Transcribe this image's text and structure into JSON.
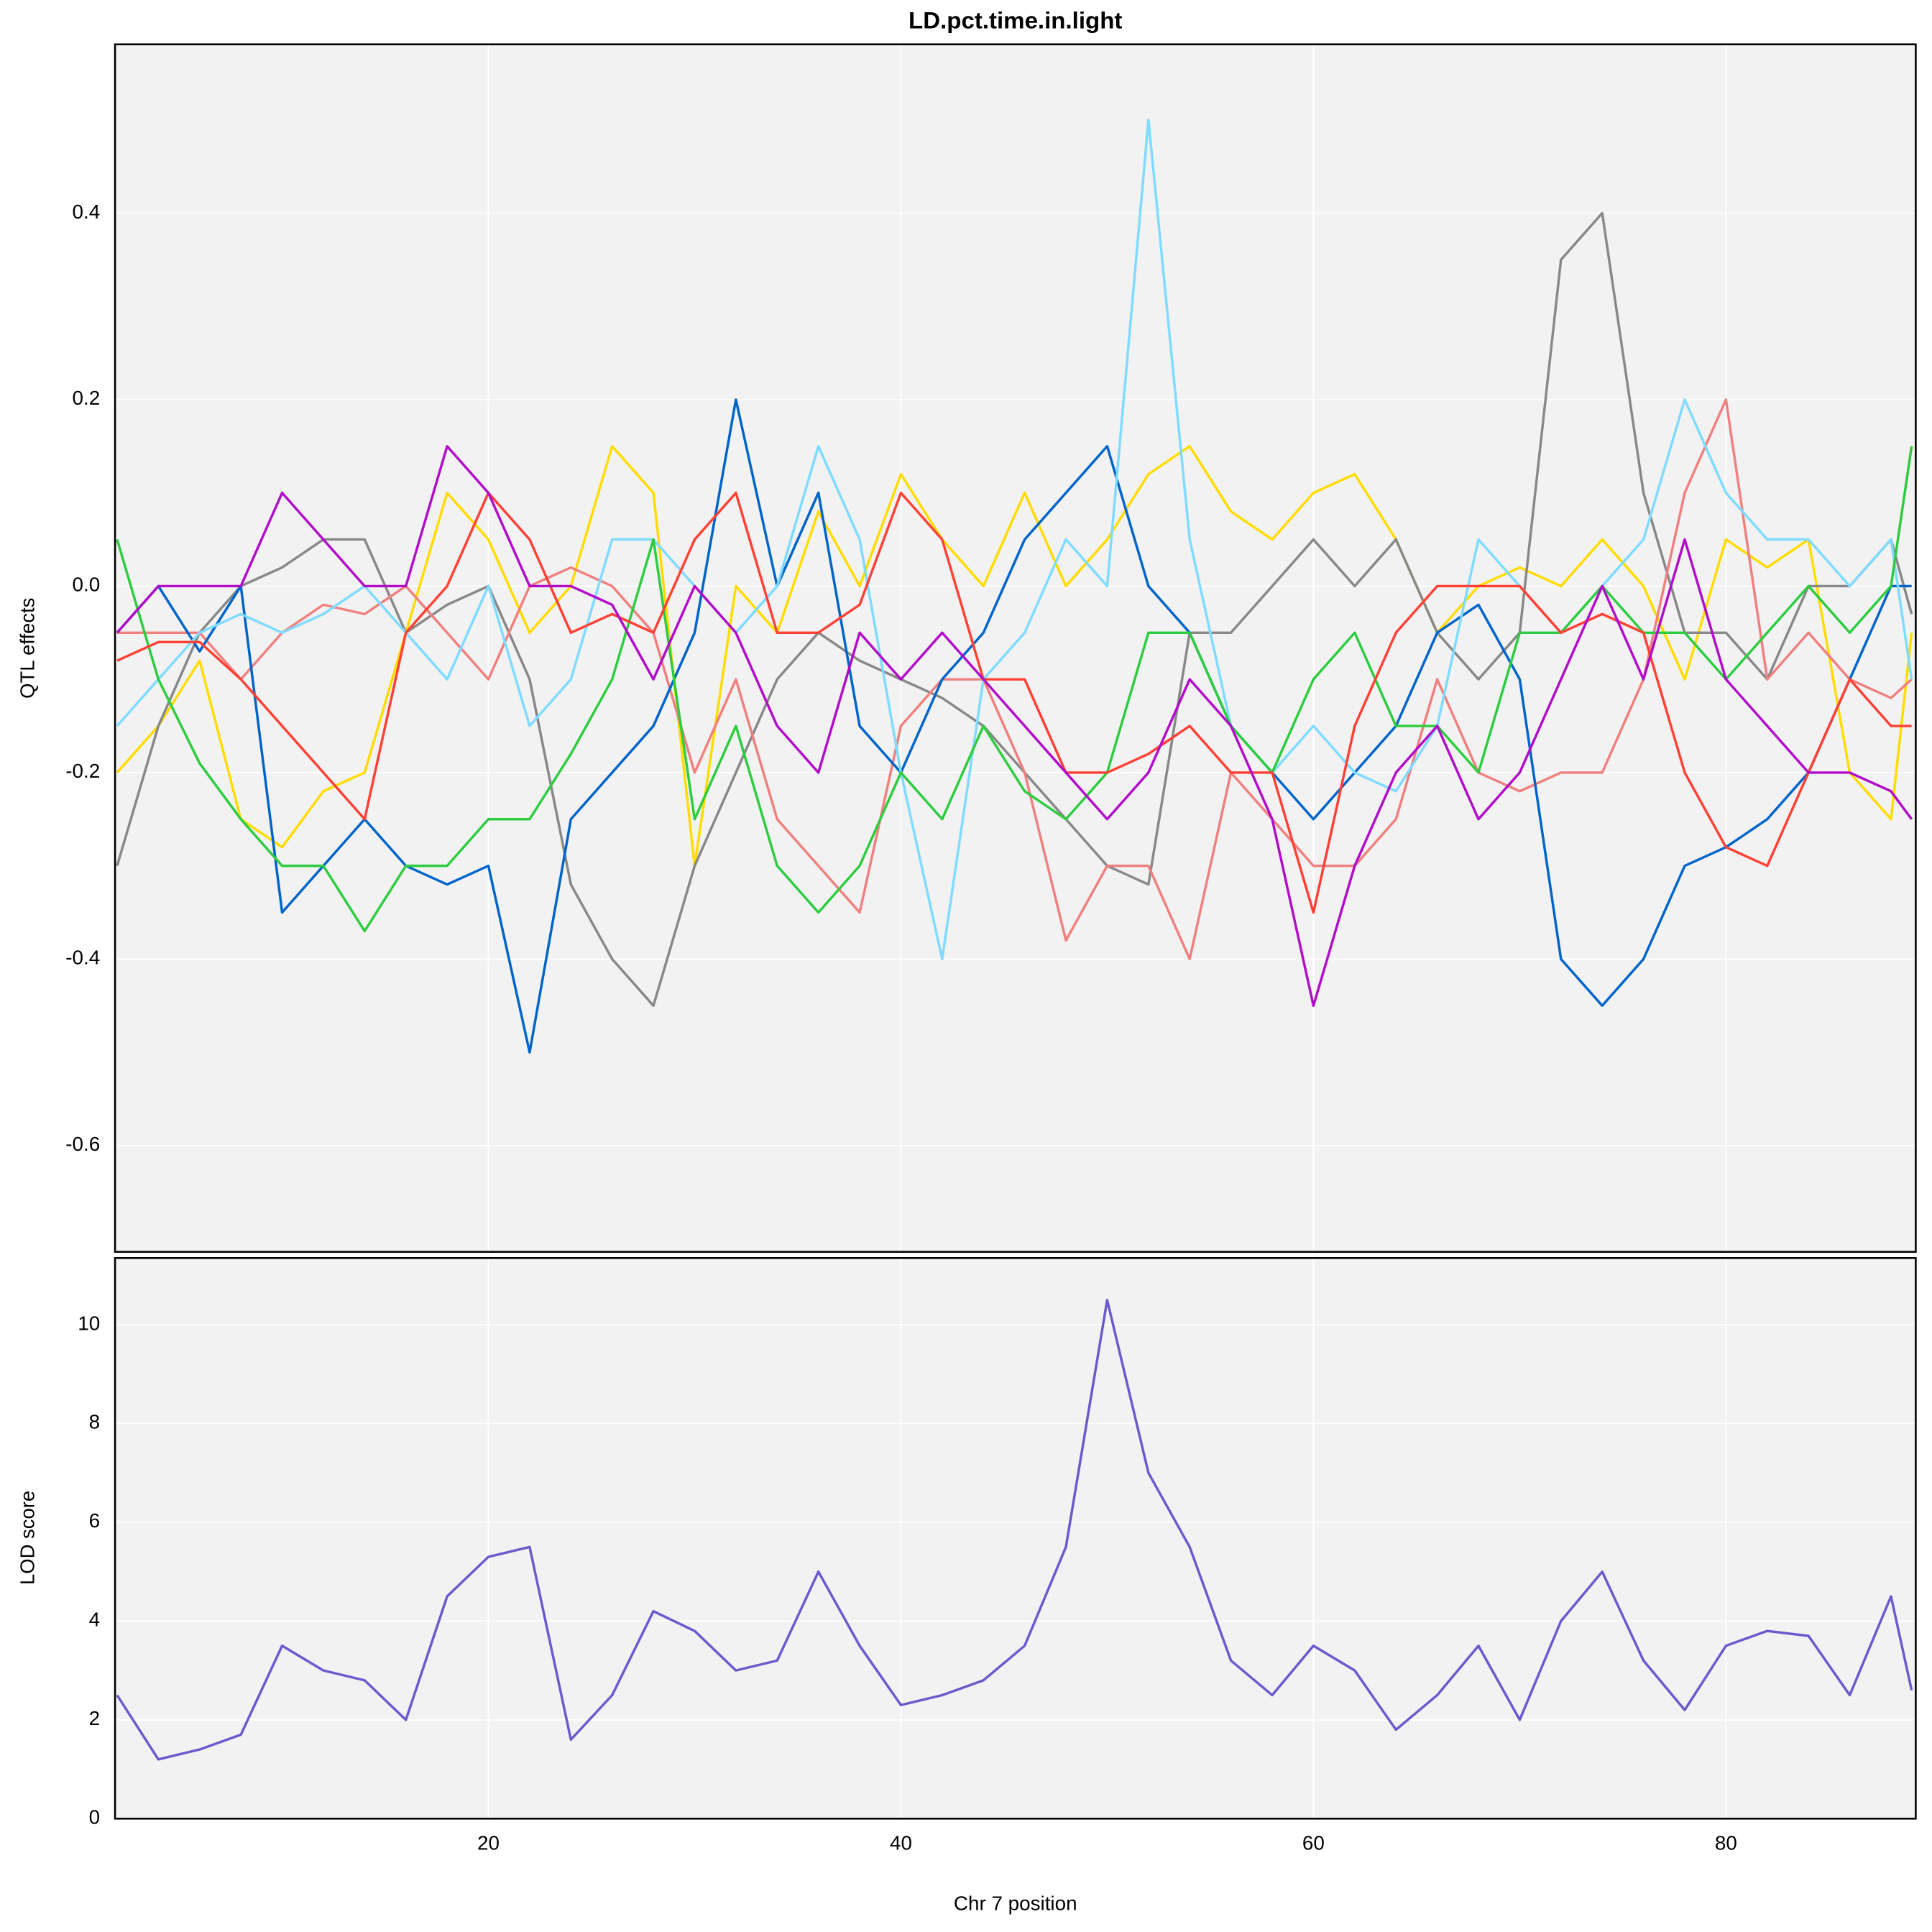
{
  "chart_data": [
    {
      "type": "line",
      "title": "LD.pct.time.in.light",
      "ylabel": "QTL effects",
      "x": [
        2,
        4,
        6,
        8,
        10,
        12,
        14,
        16,
        18,
        20,
        22,
        24,
        26,
        28,
        30,
        32,
        34,
        36,
        38,
        40,
        42,
        44,
        46,
        48,
        50,
        52,
        54,
        56,
        58,
        60,
        62,
        64,
        66,
        68,
        70,
        72,
        74,
        76,
        78,
        80,
        82,
        84,
        86,
        88,
        89
      ],
      "series": [
        {
          "color": "#FFDC00",
          "values": [
            -0.2,
            -0.15,
            -0.08,
            -0.25,
            -0.28,
            -0.22,
            -0.2,
            -0.05,
            0.1,
            0.05,
            -0.05,
            0.0,
            0.15,
            0.1,
            -0.3,
            0.0,
            -0.05,
            0.08,
            0.0,
            0.12,
            0.05,
            0.0,
            0.1,
            0.0,
            0.05,
            0.12,
            0.15,
            0.08,
            0.05,
            0.1,
            0.12,
            0.05,
            -0.05,
            0.0,
            0.02,
            0.0,
            0.05,
            0.0,
            -0.1,
            0.05,
            0.02,
            0.05,
            -0.2,
            -0.25,
            -0.05
          ]
        },
        {
          "color": "#888888",
          "values": [
            -0.3,
            -0.15,
            -0.05,
            0.0,
            0.02,
            0.05,
            0.05,
            -0.05,
            -0.02,
            0.0,
            -0.1,
            -0.32,
            -0.4,
            -0.45,
            -0.3,
            -0.2,
            -0.1,
            -0.05,
            -0.08,
            -0.1,
            -0.12,
            -0.15,
            -0.2,
            -0.25,
            -0.3,
            -0.32,
            -0.05,
            -0.05,
            0.0,
            0.05,
            0.0,
            0.05,
            -0.05,
            -0.1,
            -0.05,
            0.35,
            0.4,
            0.1,
            -0.05,
            -0.05,
            -0.1,
            0.0,
            0.0,
            0.05,
            -0.03
          ]
        },
        {
          "color": "#F08080",
          "values": [
            -0.05,
            -0.05,
            -0.05,
            -0.1,
            -0.05,
            -0.02,
            -0.03,
            0.0,
            -0.05,
            -0.1,
            0.0,
            0.02,
            0.0,
            -0.05,
            -0.2,
            -0.1,
            -0.25,
            -0.3,
            -0.35,
            -0.15,
            -0.1,
            -0.1,
            -0.2,
            -0.38,
            -0.3,
            -0.3,
            -0.4,
            -0.2,
            -0.25,
            -0.3,
            -0.3,
            -0.25,
            -0.1,
            -0.2,
            -0.22,
            -0.2,
            -0.2,
            -0.1,
            0.1,
            0.2,
            -0.1,
            -0.05,
            -0.1,
            -0.12,
            -0.1
          ]
        },
        {
          "color": "#0064C9",
          "values": [
            -0.05,
            0.0,
            -0.07,
            0.0,
            -0.35,
            -0.3,
            -0.25,
            -0.3,
            -0.32,
            -0.3,
            -0.5,
            -0.25,
            -0.2,
            -0.15,
            -0.05,
            0.2,
            0.0,
            0.1,
            -0.15,
            -0.2,
            -0.1,
            -0.05,
            0.05,
            0.1,
            0.15,
            0.0,
            -0.05,
            -0.15,
            -0.2,
            -0.25,
            -0.2,
            -0.15,
            -0.05,
            -0.02,
            -0.1,
            -0.4,
            -0.45,
            -0.4,
            -0.3,
            -0.28,
            -0.25,
            -0.2,
            -0.1,
            0.0,
            0.0
          ]
        },
        {
          "color": "#7FDBFF",
          "values": [
            -0.15,
            -0.1,
            -0.05,
            -0.03,
            -0.05,
            -0.03,
            0.0,
            -0.05,
            -0.1,
            0.0,
            -0.15,
            -0.1,
            0.05,
            0.05,
            0.0,
            -0.05,
            0.0,
            0.15,
            0.05,
            -0.2,
            -0.4,
            -0.1,
            -0.05,
            0.05,
            0.0,
            0.5,
            0.05,
            -0.15,
            -0.2,
            -0.15,
            -0.2,
            -0.22,
            -0.15,
            0.05,
            0.0,
            -0.05,
            0.0,
            0.05,
            0.2,
            0.1,
            0.05,
            0.05,
            0.0,
            0.05,
            -0.1
          ]
        },
        {
          "color": "#2ECC40",
          "values": [
            0.05,
            -0.1,
            -0.19,
            -0.25,
            -0.3,
            -0.3,
            -0.37,
            -0.3,
            -0.3,
            -0.25,
            -0.25,
            -0.18,
            -0.1,
            0.05,
            -0.25,
            -0.15,
            -0.3,
            -0.35,
            -0.3,
            -0.2,
            -0.25,
            -0.15,
            -0.22,
            -0.25,
            -0.2,
            -0.05,
            -0.05,
            -0.15,
            -0.2,
            -0.1,
            -0.05,
            -0.15,
            -0.15,
            -0.2,
            -0.05,
            -0.05,
            0.0,
            -0.05,
            -0.05,
            -0.1,
            -0.05,
            0.0,
            -0.05,
            0.0,
            0.15
          ]
        },
        {
          "color": "#FF4136",
          "values": [
            -0.08,
            -0.06,
            -0.06,
            -0.1,
            -0.15,
            -0.2,
            -0.25,
            -0.05,
            0.0,
            0.1,
            0.05,
            -0.05,
            -0.03,
            -0.05,
            0.05,
            0.1,
            -0.05,
            -0.05,
            -0.02,
            0.1,
            0.05,
            -0.1,
            -0.1,
            -0.2,
            -0.2,
            -0.18,
            -0.15,
            -0.2,
            -0.2,
            -0.35,
            -0.15,
            -0.05,
            0.0,
            0.0,
            0.0,
            -0.05,
            -0.03,
            -0.05,
            -0.2,
            -0.28,
            -0.3,
            -0.2,
            -0.1,
            -0.15,
            -0.15
          ]
        },
        {
          "color": "#B10DC9",
          "values": [
            -0.05,
            0.0,
            0.0,
            0.0,
            0.1,
            0.05,
            0.0,
            0.0,
            0.15,
            0.1,
            0.0,
            0.0,
            -0.02,
            -0.1,
            0.0,
            -0.05,
            -0.15,
            -0.2,
            -0.05,
            -0.1,
            -0.05,
            -0.1,
            -0.15,
            -0.2,
            -0.25,
            -0.2,
            -0.1,
            -0.15,
            -0.25,
            -0.45,
            -0.3,
            -0.2,
            -0.15,
            -0.25,
            -0.2,
            -0.1,
            0.0,
            -0.1,
            0.05,
            -0.1,
            -0.15,
            -0.2,
            -0.2,
            -0.22,
            -0.25
          ]
        }
      ],
      "xlim": [
        1.9,
        89.2
      ],
      "xticks": [
        20,
        40,
        60,
        80
      ],
      "ylim": [
        -0.714,
        0.581
      ],
      "yticks": [
        0.4,
        0.2,
        {
          "value": 0,
          "label": "0.0"
        },
        -0.2,
        -0.4,
        -0.6
      ],
      "grid": true
    },
    {
      "type": "line",
      "xlabel": "Chr 7 position",
      "ylabel": "LOD score",
      "x": [
        2,
        4,
        6,
        8,
        10,
        12,
        14,
        16,
        18,
        20,
        22,
        24,
        26,
        28,
        30,
        32,
        34,
        36,
        38,
        40,
        42,
        44,
        46,
        48,
        50,
        52,
        54,
        56,
        58,
        60,
        62,
        64,
        66,
        68,
        70,
        72,
        74,
        76,
        78,
        80,
        82,
        84,
        86,
        88,
        89
      ],
      "series": [
        {
          "color": "#6A5ACD",
          "values": [
            2.5,
            1.2,
            1.4,
            1.7,
            3.5,
            3.0,
            2.8,
            2.0,
            4.5,
            5.3,
            5.5,
            1.6,
            2.5,
            4.2,
            3.8,
            3.0,
            3.2,
            5.0,
            3.5,
            2.3,
            2.5,
            2.8,
            3.5,
            5.5,
            10.5,
            7.0,
            5.5,
            3.2,
            2.5,
            3.5,
            3.0,
            1.8,
            2.5,
            3.5,
            2.0,
            4.0,
            5.0,
            3.2,
            2.2,
            3.5,
            3.8,
            3.7,
            2.5,
            4.5,
            2.6
          ]
        }
      ],
      "xlim": [
        1.9,
        89.2
      ],
      "xticks": [
        20,
        40,
        60,
        80
      ],
      "ylim": [
        0,
        11.35
      ],
      "yticks": [
        0,
        2,
        4,
        6,
        8,
        10
      ],
      "grid": true
    }
  ]
}
